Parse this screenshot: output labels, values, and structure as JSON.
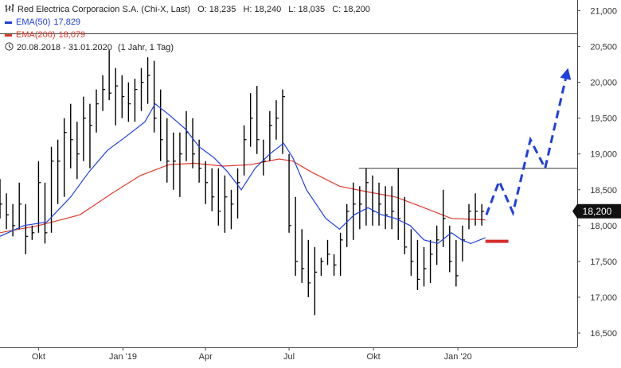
{
  "header": {
    "icon": "ohlc-bars-icon",
    "instrument": "Red Electrica Corporacion S.A. (Chi-X, Last)",
    "ohlc": [
      "O: 18,235",
      "H: 18,240",
      "L: 18,035",
      "C: 18,200"
    ],
    "ema50_label": "EMA(50)",
    "ema50_value": "17,829",
    "ema200_label": "EMA(200)",
    "ema200_value": "18,079",
    "period_icon": "clock-icon",
    "period": "20.08.2018 - 31.01.2020",
    "interval": "(1 Jahr, 1 Tag)"
  },
  "colors": {
    "price": "#000000",
    "ema50": "#1f3fe0",
    "ema200": "#e03a2a",
    "forecast": "#1f3fe0",
    "target_bar": "#d62a2a",
    "axis": "#444444",
    "price_badge_bg": "#111111",
    "price_badge_fg": "#ffffff"
  },
  "chart_data": {
    "type": "line",
    "title": "Red Electrica Corporacion S.A. (Chi-X, Last)",
    "date_range": "20.08.2018 - 31.01.2020",
    "y_ticks": [
      16.5,
      17.0,
      17.5,
      18.0,
      18.5,
      19.0,
      19.5,
      20.0,
      20.5,
      21.0
    ],
    "y_tick_labels": [
      "16,500",
      "17,000",
      "17,500",
      "18,000",
      "18,500",
      "19,000",
      "19,500",
      "20,000",
      "20,500",
      "21,000"
    ],
    "ylim": [
      16.3,
      21.15
    ],
    "x_ticks": [
      {
        "date": "2018-10-01",
        "label": "Okt"
      },
      {
        "date": "2019-01-01",
        "label": "Jan '19"
      },
      {
        "date": "2019-04-01",
        "label": "Apr"
      },
      {
        "date": "2019-07-01",
        "label": "Jul"
      },
      {
        "date": "2019-10-01",
        "label": "Okt"
      },
      {
        "date": "2020-01-01",
        "label": "Jan '20"
      }
    ],
    "xlim": [
      "2018-08-20",
      "2020-05-10"
    ],
    "last_price": 18.2,
    "last_price_label": "18,200",
    "series": [
      {
        "name": "Red Electrica Corporacion S.A.",
        "style": "ohlc",
        "x": [
          "2018-08-20",
          "2018-08-27",
          "2018-09-03",
          "2018-09-10",
          "2018-09-17",
          "2018-09-24",
          "2018-10-01",
          "2018-10-08",
          "2018-10-15",
          "2018-10-22",
          "2018-10-29",
          "2018-11-05",
          "2018-11-12",
          "2018-11-19",
          "2018-11-26",
          "2018-12-03",
          "2018-12-10",
          "2018-12-17",
          "2018-12-24",
          "2018-12-31",
          "2019-01-07",
          "2019-01-14",
          "2019-01-21",
          "2019-01-28",
          "2019-02-04",
          "2019-02-11",
          "2019-02-18",
          "2019-02-25",
          "2019-03-04",
          "2019-03-11",
          "2019-03-18",
          "2019-03-25",
          "2019-04-01",
          "2019-04-08",
          "2019-04-15",
          "2019-04-22",
          "2019-04-29",
          "2019-05-06",
          "2019-05-13",
          "2019-05-20",
          "2019-05-27",
          "2019-06-03",
          "2019-06-10",
          "2019-06-17",
          "2019-06-24",
          "2019-07-01",
          "2019-07-08",
          "2019-07-15",
          "2019-07-22",
          "2019-07-29",
          "2019-08-05",
          "2019-08-12",
          "2019-08-19",
          "2019-08-26",
          "2019-09-02",
          "2019-09-09",
          "2019-09-16",
          "2019-09-23",
          "2019-09-30",
          "2019-10-07",
          "2019-10-14",
          "2019-10-21",
          "2019-10-28",
          "2019-11-04",
          "2019-11-11",
          "2019-11-18",
          "2019-11-25",
          "2019-12-02",
          "2019-12-09",
          "2019-12-16",
          "2019-12-23",
          "2019-12-30",
          "2020-01-06",
          "2020-01-13",
          "2020-01-20",
          "2020-01-27"
        ],
        "high": [
          18.65,
          18.45,
          18.3,
          18.6,
          18.3,
          18.0,
          18.9,
          18.6,
          19.1,
          19.2,
          19.5,
          19.7,
          19.45,
          19.8,
          19.7,
          19.9,
          20.1,
          20.45,
          20.2,
          20.1,
          20.0,
          20.05,
          20.2,
          20.35,
          20.3,
          19.9,
          19.5,
          19.3,
          19.3,
          19.6,
          19.5,
          19.2,
          18.9,
          18.8,
          18.8,
          18.7,
          18.5,
          18.8,
          19.4,
          19.85,
          19.95,
          19.2,
          19.6,
          19.75,
          19.9,
          19.0,
          18.4,
          17.95,
          17.8,
          17.7,
          17.55,
          17.8,
          17.6,
          17.9,
          18.3,
          18.6,
          18.55,
          18.8,
          18.7,
          18.6,
          18.55,
          18.55,
          18.8,
          18.4,
          17.95,
          17.8,
          17.7,
          17.8,
          18.0,
          18.5,
          18.0,
          17.8,
          18.0,
          18.3,
          18.45,
          18.3
        ],
        "low": [
          18.1,
          17.95,
          17.85,
          17.95,
          17.6,
          17.8,
          17.9,
          17.75,
          17.9,
          18.3,
          18.4,
          18.8,
          18.65,
          18.9,
          18.8,
          19.3,
          19.6,
          19.75,
          19.4,
          19.5,
          19.45,
          19.45,
          19.6,
          19.7,
          19.3,
          18.9,
          18.6,
          18.5,
          18.4,
          18.9,
          18.8,
          18.6,
          18.3,
          18.2,
          18.0,
          17.9,
          17.95,
          18.1,
          18.7,
          19.1,
          19.0,
          18.7,
          18.9,
          19.2,
          19.0,
          17.9,
          17.3,
          17.2,
          17.0,
          16.75,
          17.3,
          17.45,
          17.3,
          17.3,
          17.7,
          17.8,
          17.95,
          18.0,
          18.0,
          18.0,
          17.95,
          17.95,
          17.8,
          17.6,
          17.3,
          17.1,
          17.15,
          17.2,
          17.45,
          17.7,
          17.35,
          17.15,
          17.5,
          17.95,
          18.0,
          18.0
        ],
        "close": [
          18.3,
          18.15,
          18.0,
          18.3,
          17.85,
          17.9,
          18.6,
          17.9,
          18.9,
          18.9,
          19.3,
          19.2,
          19.0,
          19.5,
          19.4,
          19.7,
          19.9,
          19.85,
          19.95,
          19.8,
          19.7,
          19.9,
          20.0,
          20.1,
          19.5,
          19.2,
          18.9,
          18.9,
          19.0,
          19.3,
          19.0,
          18.8,
          18.6,
          18.4,
          18.2,
          18.4,
          18.3,
          18.6,
          19.2,
          19.5,
          19.2,
          18.9,
          19.4,
          19.5,
          19.8,
          18.0,
          17.5,
          17.4,
          17.2,
          17.35,
          17.5,
          17.6,
          17.45,
          17.8,
          18.2,
          18.3,
          18.3,
          18.6,
          18.2,
          18.3,
          18.15,
          18.2,
          18.1,
          17.7,
          17.5,
          17.25,
          17.4,
          17.6,
          17.8,
          18.1,
          17.5,
          17.3,
          17.8,
          18.2,
          18.2,
          18.2
        ]
      },
      {
        "name": "EMA(50)",
        "x": [
          "2018-08-20",
          "2018-09-15",
          "2018-10-10",
          "2018-11-05",
          "2018-11-25",
          "2018-12-15",
          "2019-01-05",
          "2019-01-25",
          "2019-02-05",
          "2019-02-20",
          "2019-03-10",
          "2019-03-25",
          "2019-04-10",
          "2019-04-25",
          "2019-05-10",
          "2019-05-25",
          "2019-06-10",
          "2019-06-25",
          "2019-07-05",
          "2019-07-20",
          "2019-08-10",
          "2019-08-25",
          "2019-09-10",
          "2019-09-25",
          "2019-10-10",
          "2019-10-25",
          "2019-11-10",
          "2019-11-25",
          "2019-12-10",
          "2019-12-25",
          "2020-01-05",
          "2020-01-15",
          "2020-01-31"
        ],
        "values": [
          17.85,
          18.0,
          18.05,
          18.4,
          18.75,
          19.05,
          19.25,
          19.45,
          19.7,
          19.55,
          19.35,
          19.1,
          18.95,
          18.75,
          18.5,
          18.8,
          19.0,
          19.15,
          18.95,
          18.5,
          18.1,
          17.95,
          18.15,
          18.25,
          18.15,
          18.1,
          18.0,
          17.8,
          17.75,
          17.9,
          17.8,
          17.75,
          17.83
        ]
      },
      {
        "name": "EMA(200)",
        "x": [
          "2018-08-20",
          "2018-10-01",
          "2018-11-15",
          "2018-12-20",
          "2019-01-20",
          "2019-02-20",
          "2019-03-20",
          "2019-04-20",
          "2019-05-20",
          "2019-06-20",
          "2019-07-05",
          "2019-07-25",
          "2019-08-25",
          "2019-09-25",
          "2019-10-25",
          "2019-11-25",
          "2019-12-25",
          "2020-01-31"
        ],
        "values": [
          17.9,
          18.0,
          18.15,
          18.45,
          18.7,
          18.85,
          18.87,
          18.83,
          18.85,
          18.93,
          18.9,
          18.75,
          18.55,
          18.47,
          18.4,
          18.25,
          18.1,
          18.08
        ]
      }
    ],
    "annotations": [
      {
        "kind": "horizontal_line",
        "value": 20.68,
        "from": "2018-08-20",
        "to": "2020-05-10"
      },
      {
        "kind": "horizontal_line",
        "value": 18.8,
        "from": "2019-09-15",
        "to": "2020-05-10"
      },
      {
        "kind": "dashed_forecast",
        "color": "blue",
        "x": [
          "2020-02-01",
          "2020-02-15",
          "2020-03-01",
          "2020-03-20",
          "2020-04-05",
          "2020-04-30"
        ],
        "values": [
          18.15,
          18.62,
          18.18,
          19.2,
          18.8,
          20.2
        ]
      },
      {
        "kind": "thick_segment",
        "color": "red",
        "value": 17.78,
        "from": "2020-01-31",
        "to": "2020-02-25"
      }
    ]
  }
}
